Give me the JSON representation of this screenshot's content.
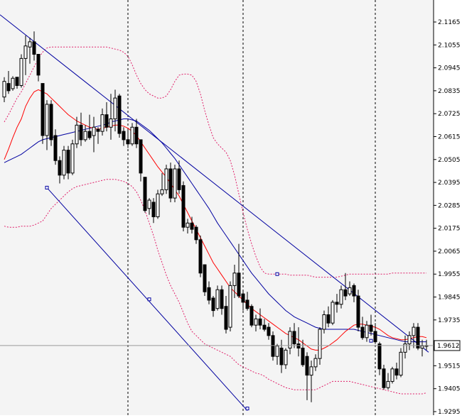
{
  "chart_data": {
    "type": "candlestick",
    "y_axis": {
      "position": "right",
      "min": 1.9295,
      "max": 2.1165,
      "ticks": [
        "2.1165",
        "2.1055",
        "2.0945",
        "2.0835",
        "2.0725",
        "2.0615",
        "2.0505",
        "2.0395",
        "2.0285",
        "2.0175",
        "2.0065",
        "1.9955",
        "1.9845",
        "1.9735",
        "1.9625",
        "1.9515",
        "1.9405",
        "1.9295"
      ]
    },
    "current_price_label": "1.9612",
    "current_price": 1.9612,
    "bar_count": 100,
    "period_separators_bar_index": [
      29,
      56,
      87
    ],
    "grid": false,
    "colors": {
      "background": "#f4f4f4",
      "bull_candle": "#ffffff",
      "bear_candle": "#000000",
      "wick": "#000000",
      "ma_fast": "#ff0000",
      "ma_slow": "#0000a0",
      "envelope": "#e0206a",
      "channel": "#0000a0",
      "separator": "#000000"
    },
    "candles": [
      [
        2.0805,
        2.09,
        2.078,
        2.088
      ],
      [
        2.087,
        2.093,
        2.082,
        2.0835
      ],
      [
        2.0845,
        2.0905,
        2.0835,
        2.0895
      ],
      [
        2.09,
        2.09,
        2.0845,
        2.086
      ],
      [
        2.086,
        2.101,
        2.085,
        2.099
      ],
      [
        2.099,
        2.11,
        2.091,
        2.105
      ],
      [
        2.1045,
        2.109,
        2.0965,
        2.107
      ],
      [
        2.107,
        2.112,
        2.098,
        2.101
      ],
      [
        2.101,
        2.101,
        2.088,
        2.091
      ],
      [
        2.087,
        2.087,
        2.058,
        2.062
      ],
      [
        2.062,
        2.079,
        2.055,
        2.077
      ],
      [
        2.077,
        2.079,
        2.057,
        2.06
      ],
      [
        2.062,
        2.065,
        2.048,
        2.05
      ],
      [
        2.05,
        2.052,
        2.039,
        2.043
      ],
      [
        2.043,
        2.057,
        2.041,
        2.055
      ],
      [
        2.055,
        2.057,
        2.041,
        2.044
      ],
      [
        2.044,
        2.06,
        2.043,
        2.058
      ],
      [
        2.058,
        2.071,
        2.056,
        2.067
      ],
      [
        2.067,
        2.073,
        2.057,
        2.06
      ],
      [
        2.06,
        2.067,
        2.059,
        2.064
      ],
      [
        2.064,
        2.072,
        2.06,
        2.061
      ],
      [
        2.062,
        2.071,
        2.054,
        2.066
      ],
      [
        2.065,
        2.066,
        2.058,
        2.064
      ],
      [
        2.064,
        2.075,
        2.062,
        2.072
      ],
      [
        2.072,
        2.078,
        2.064,
        2.066
      ],
      [
        2.066,
        2.082,
        2.06,
        2.07
      ],
      [
        2.07,
        2.084,
        2.064,
        2.08
      ],
      [
        2.081,
        2.082,
        2.061,
        2.063
      ],
      [
        2.064,
        2.066,
        2.057,
        2.06
      ],
      [
        2.06,
        2.065,
        2.056,
        2.058
      ],
      [
        2.058,
        2.068,
        2.057,
        2.066
      ],
      [
        2.066,
        2.07,
        2.056,
        2.058
      ],
      [
        2.06,
        2.06,
        2.04,
        2.044
      ],
      [
        2.042,
        2.042,
        2.025,
        2.026
      ],
      [
        2.027,
        2.032,
        2.024,
        2.031
      ],
      [
        2.03,
        2.032,
        2.02,
        2.023
      ],
      [
        2.023,
        2.036,
        2.022,
        2.034
      ],
      [
        2.034,
        2.044,
        2.033,
        2.036
      ],
      [
        2.036,
        2.048,
        2.034,
        2.046
      ],
      [
        2.046,
        2.049,
        2.03,
        2.032
      ],
      [
        2.032,
        2.048,
        2.03,
        2.046
      ],
      [
        2.046,
        2.05,
        2.034,
        2.036
      ],
      [
        2.038,
        2.04,
        2.016,
        2.018
      ],
      [
        2.018,
        2.022,
        2.015,
        2.02
      ],
      [
        2.02,
        2.023,
        2.015,
        2.017
      ],
      [
        2.018,
        2.019,
        2.01,
        2.012
      ],
      [
        2.012,
        2.014,
        1.994,
        1.996
      ],
      [
        2.0,
        2.0,
        1.985,
        1.987
      ],
      [
        1.989,
        1.992,
        1.981,
        1.983
      ],
      [
        1.984,
        1.985,
        1.975,
        1.978
      ],
      [
        1.979,
        1.99,
        1.978,
        1.988
      ],
      [
        1.988,
        1.99,
        1.976,
        1.979
      ],
      [
        1.98,
        1.985,
        1.967,
        1.969
      ],
      [
        1.97,
        1.992,
        1.968,
        1.99
      ],
      [
        1.99,
        2.0,
        1.984,
        1.996
      ],
      [
        1.996,
        2.01,
        1.984,
        1.985
      ],
      [
        1.986,
        1.988,
        1.978,
        1.982
      ],
      [
        1.983,
        1.987,
        1.978,
        1.979
      ],
      [
        1.98,
        1.981,
        1.97,
        1.971
      ],
      [
        1.971,
        1.976,
        1.968,
        1.974
      ],
      [
        1.974,
        1.979,
        1.969,
        1.971
      ],
      [
        1.971,
        1.974,
        1.968,
        1.969
      ],
      [
        1.97,
        1.972,
        1.964,
        1.966
      ],
      [
        1.966,
        1.968,
        1.954,
        1.956
      ],
      [
        1.956,
        1.962,
        1.952,
        1.961
      ],
      [
        1.96,
        1.964,
        1.948,
        1.952
      ],
      [
        1.952,
        1.96,
        1.95,
        1.959
      ],
      [
        1.96,
        1.97,
        1.957,
        1.968
      ],
      [
        1.968,
        1.972,
        1.96,
        1.962
      ],
      [
        1.962,
        1.97,
        1.956,
        1.96
      ],
      [
        1.96,
        1.964,
        1.951,
        1.952
      ],
      [
        1.956,
        1.958,
        1.935,
        1.947
      ],
      [
        1.947,
        1.954,
        1.934,
        1.951
      ],
      [
        1.951,
        1.957,
        1.949,
        1.955
      ],
      [
        1.955,
        1.97,
        1.952,
        1.969
      ],
      [
        1.969,
        1.978,
        1.967,
        1.976
      ],
      [
        1.976,
        1.98,
        1.97,
        1.972
      ],
      [
        1.972,
        1.983,
        1.971,
        1.982
      ],
      [
        1.982,
        1.986,
        1.977,
        1.981
      ],
      [
        1.981,
        1.99,
        1.979,
        1.988
      ],
      [
        1.988,
        1.996,
        1.983,
        1.985
      ],
      [
        1.986,
        1.992,
        1.985,
        1.989
      ],
      [
        1.99,
        1.991,
        1.982,
        1.985
      ],
      [
        1.985,
        1.988,
        1.968,
        1.97
      ],
      [
        1.97,
        1.975,
        1.964,
        1.965
      ],
      [
        1.965,
        1.973,
        1.963,
        1.971
      ],
      [
        1.971,
        1.976,
        1.966,
        1.968
      ],
      [
        1.968,
        1.972,
        1.962,
        1.963
      ],
      [
        1.962,
        1.963,
        1.947,
        1.95
      ],
      [
        1.95,
        1.952,
        1.94,
        1.941
      ],
      [
        1.941,
        1.948,
        1.94,
        1.944
      ],
      [
        1.944,
        1.951,
        1.943,
        1.95
      ],
      [
        1.95,
        1.953,
        1.945,
        1.947
      ],
      [
        1.947,
        1.96,
        1.946,
        1.958
      ],
      [
        1.958,
        1.966,
        1.955,
        1.962
      ],
      [
        1.962,
        1.968,
        1.959,
        1.966
      ],
      [
        1.966,
        1.972,
        1.96,
        1.97
      ],
      [
        1.97,
        1.972,
        1.959,
        1.96
      ],
      [
        1.96,
        1.964,
        1.956,
        1.961
      ],
      [
        1.961,
        1.964,
        1.959,
        1.9612
      ]
    ],
    "ma_fast": [
      2.0505,
      2.0555,
      2.061,
      2.066,
      2.07,
      2.076,
      2.08,
      2.083,
      2.084,
      2.083,
      2.082,
      2.08,
      2.078,
      2.076,
      2.074,
      2.072,
      2.0705,
      2.069,
      2.068,
      2.067,
      2.066,
      2.0655,
      2.065,
      2.0655,
      2.066,
      2.0665,
      2.067,
      2.067,
      2.0665,
      2.0655,
      2.064,
      2.062,
      2.059,
      2.056,
      2.053,
      2.05,
      2.047,
      2.0445,
      2.042,
      2.039,
      2.036,
      2.033,
      2.029,
      2.025,
      2.021,
      2.017,
      2.013,
      2.009,
      2.005,
      2.001,
      1.998,
      1.995,
      1.992,
      1.989,
      1.987,
      1.985,
      1.983,
      1.981,
      1.979,
      1.9775,
      1.976,
      1.9745,
      1.973,
      1.9715,
      1.97,
      1.9685,
      1.967,
      1.966,
      1.965,
      1.964,
      1.9625,
      1.961,
      1.9595,
      1.959,
      1.959,
      1.96,
      1.961,
      1.9625,
      1.964,
      1.966,
      1.968,
      1.9695,
      1.971,
      1.9715,
      1.9715,
      1.971,
      1.9705,
      1.97,
      1.969,
      1.9675,
      1.966,
      1.965,
      1.9645,
      1.964,
      1.964,
      1.9645,
      1.965,
      1.9655,
      1.9655,
      1.965
    ],
    "ma_slow": [
      2.049,
      2.05,
      2.051,
      2.052,
      2.053,
      2.0545,
      2.056,
      2.0575,
      2.059,
      2.06,
      2.0605,
      2.061,
      2.0615,
      2.062,
      2.0625,
      2.063,
      2.0635,
      2.064,
      2.0645,
      2.065,
      2.0655,
      2.066,
      2.0665,
      2.067,
      2.0675,
      2.0685,
      2.069,
      2.0695,
      2.07,
      2.07,
      2.0695,
      2.069,
      2.0675,
      2.066,
      2.0645,
      2.0625,
      2.0605,
      2.0585,
      2.056,
      2.0535,
      2.051,
      2.048,
      2.045,
      2.042,
      2.039,
      2.036,
      2.033,
      2.03,
      2.027,
      2.0235,
      2.02,
      2.017,
      2.014,
      2.011,
      2.008,
      2.005,
      2.002,
      1.999,
      1.996,
      1.9935,
      1.991,
      1.9885,
      1.986,
      1.984,
      1.982,
      1.98,
      1.978,
      1.9765,
      1.975,
      1.974,
      1.973,
      1.972,
      1.971,
      1.97,
      1.9695,
      1.969,
      1.969,
      1.969,
      1.969,
      1.969,
      1.969,
      1.969,
      1.969,
      1.9685,
      1.968,
      1.9675,
      1.967,
      1.9665,
      1.966,
      1.9655,
      1.965,
      1.9645,
      1.964,
      1.9635,
      1.963,
      1.963,
      1.963,
      1.963,
      1.963,
      1.963
    ],
    "envelope_upper": [
      2.0685,
      2.072,
      2.076,
      2.08,
      2.083,
      2.087,
      2.091,
      2.095,
      2.099,
      2.102,
      2.104,
      2.1045,
      2.1045,
      2.1045,
      2.1045,
      2.1045,
      2.1045,
      2.1045,
      2.1045,
      2.1045,
      2.1045,
      2.1045,
      2.1045,
      2.1045,
      2.1045,
      2.104,
      2.1035,
      2.103,
      2.102,
      2.1,
      2.096,
      2.091,
      2.087,
      2.084,
      2.082,
      2.081,
      2.08,
      2.08,
      2.081,
      2.084,
      2.088,
      2.091,
      2.0915,
      2.0915,
      2.091,
      2.088,
      2.082,
      2.074,
      2.067,
      2.061,
      2.058,
      2.056,
      2.054,
      2.05,
      2.043,
      2.034,
      2.025,
      2.017,
      2.01,
      2.004,
      1.999,
      1.996,
      1.9955,
      1.9955,
      1.9955,
      1.9955,
      1.9955,
      1.995,
      1.995,
      1.995,
      1.995,
      1.995,
      1.9945,
      1.994,
      1.994,
      1.994,
      1.994,
      1.994,
      1.994,
      1.9945,
      1.995,
      1.9955,
      1.9955,
      1.9955,
      1.9955,
      1.9955,
      1.9955,
      1.9955,
      1.9955,
      1.9955,
      1.9955,
      1.996,
      1.996,
      1.996,
      1.996,
      1.996,
      1.996,
      1.996,
      1.996,
      1.996
    ],
    "envelope_lower": [
      2.0185,
      2.018,
      2.018,
      2.018,
      2.0185,
      2.0185,
      2.0185,
      2.019,
      2.02,
      2.021,
      2.024,
      2.027,
      2.029,
      2.031,
      2.033,
      2.035,
      2.0365,
      2.0375,
      2.038,
      2.0385,
      2.039,
      2.0395,
      2.04,
      2.0405,
      2.041,
      2.041,
      2.041,
      2.0405,
      2.04,
      2.039,
      2.0375,
      2.035,
      2.031,
      2.026,
      2.02,
      2.014,
      2.007,
      2.001,
      1.995,
      1.99,
      1.986,
      1.982,
      1.977,
      1.972,
      1.968,
      1.966,
      1.964,
      1.962,
      1.961,
      1.96,
      1.959,
      1.958,
      1.957,
      1.956,
      1.954,
      1.952,
      1.951,
      1.95,
      1.949,
      1.948,
      1.9475,
      1.9465,
      1.945,
      1.944,
      1.943,
      1.942,
      1.941,
      1.9405,
      1.94,
      1.94,
      1.94,
      1.94,
      1.94,
      1.94,
      1.941,
      1.942,
      1.943,
      1.944,
      1.944,
      1.944,
      1.944,
      1.944,
      1.9435,
      1.943,
      1.9425,
      1.942,
      1.9415,
      1.941,
      1.9405,
      1.94,
      1.9395,
      1.939,
      1.9385,
      1.938,
      1.938,
      1.938,
      1.938,
      1.938,
      1.938,
      1.9385
    ],
    "channel_upper": [
      [
        -1,
        2.12
      ],
      [
        99.5,
        1.958
      ]
    ],
    "channel_lower": [
      [
        10,
        2.037
      ],
      [
        57,
        1.93
      ]
    ],
    "channel_anchor_points": [
      [
        10,
        2.037
      ],
      [
        34,
        1.9834
      ],
      [
        57,
        1.931
      ],
      [
        64,
        1.9955
      ],
      [
        86,
        1.9635
      ]
    ]
  }
}
